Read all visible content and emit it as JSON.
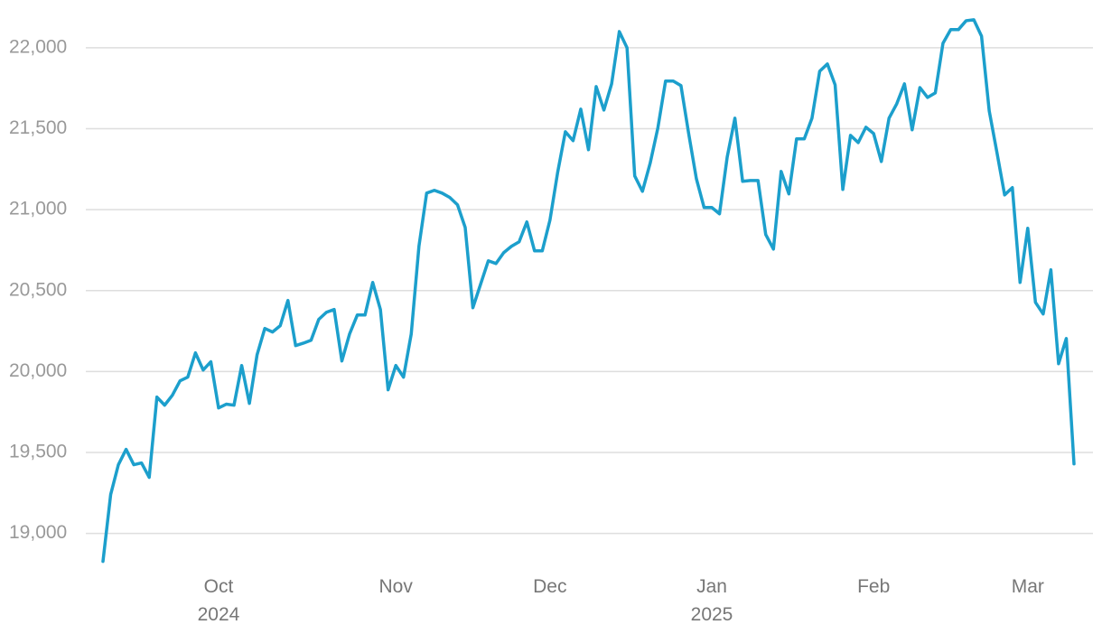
{
  "chart_data": {
    "type": "line",
    "categories": [
      null,
      null,
      null,
      null,
      null,
      null,
      null,
      null,
      null,
      null,
      null,
      null,
      null,
      null,
      null,
      "Oct\n2024",
      null,
      null,
      null,
      null,
      null,
      null,
      null,
      null,
      null,
      null,
      null,
      null,
      null,
      null,
      null,
      null,
      null,
      null,
      null,
      null,
      null,
      null,
      "Nov",
      null,
      null,
      null,
      null,
      null,
      null,
      null,
      null,
      null,
      null,
      null,
      null,
      null,
      null,
      null,
      null,
      null,
      null,
      null,
      "Dec",
      null,
      null,
      null,
      null,
      null,
      null,
      null,
      null,
      null,
      null,
      null,
      null,
      null,
      null,
      null,
      null,
      null,
      null,
      null,
      null,
      "Jan\n2025",
      null,
      null,
      null,
      null,
      null,
      null,
      null,
      null,
      null,
      null,
      null,
      null,
      null,
      null,
      null,
      null,
      null,
      null,
      null,
      null,
      "Feb",
      null,
      null,
      null,
      null,
      null,
      null,
      null,
      null,
      null,
      null,
      null,
      null,
      null,
      null,
      null,
      null,
      null,
      null,
      null,
      "Mar",
      null,
      null,
      null,
      null,
      null,
      null
    ],
    "series": [
      {
        "color": "#1c9fcc",
        "values": [
          18827,
          19240,
          19424,
          19519,
          19424,
          19435,
          19346,
          19842,
          19792,
          19853,
          19942,
          19965,
          20115,
          20009,
          20060,
          19775,
          19798,
          19792,
          20037,
          19803,
          20104,
          20266,
          20244,
          20283,
          20439,
          20160,
          20175,
          20193,
          20322,
          20366,
          20383,
          20065,
          20232,
          20349,
          20349,
          20550,
          20383,
          19887,
          20037,
          19965,
          20232,
          20773,
          21102,
          21119,
          21102,
          21075,
          21030,
          20890,
          20394,
          20539,
          20684,
          20667,
          20734,
          20773,
          20801,
          20924,
          20745,
          20745,
          20935,
          21230,
          21481,
          21426,
          21621,
          21370,
          21760,
          21615,
          21777,
          22100,
          22000,
          21208,
          21113,
          21286,
          21504,
          21794,
          21794,
          21766,
          21470,
          21191,
          21013,
          21013,
          20974,
          21325,
          21565,
          21175,
          21180,
          21180,
          20846,
          20756,
          21236,
          21097,
          21437,
          21437,
          21565,
          21855,
          21900,
          21771,
          21125,
          21459,
          21414,
          21509,
          21470,
          21297,
          21565,
          21654,
          21777,
          21493,
          21754,
          21693,
          21721,
          22028,
          22112,
          22112,
          22167,
          22173,
          22072,
          21610,
          21353,
          21091,
          21136,
          20550,
          20885,
          20427,
          20355,
          20628,
          20048,
          20204,
          19429
        ]
      }
    ],
    "ylim": [
      18780,
      22295
    ],
    "yticks": [
      {
        "value": 19000,
        "label": "19,000"
      },
      {
        "value": 19500,
        "label": "19,500"
      },
      {
        "value": 20000,
        "label": "20,000"
      },
      {
        "value": 20500,
        "label": "20,500"
      },
      {
        "value": 21000,
        "label": "21,000"
      },
      {
        "value": 21500,
        "label": "21,500"
      },
      {
        "value": 22000,
        "label": "22,000"
      }
    ],
    "grid": true
  }
}
